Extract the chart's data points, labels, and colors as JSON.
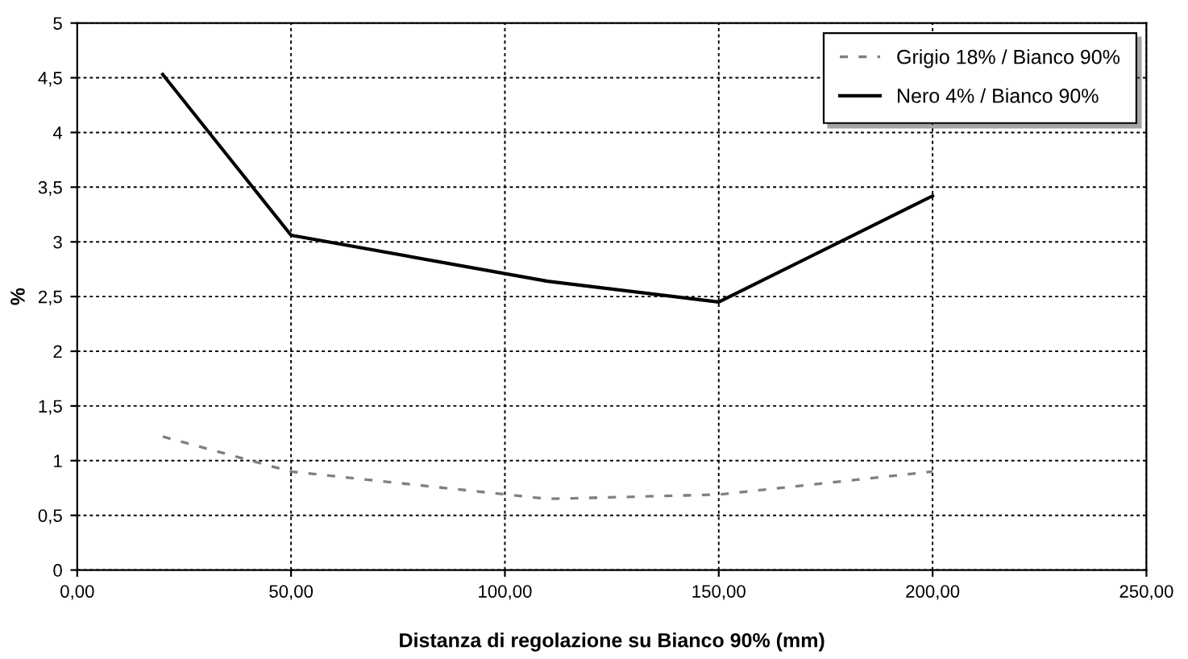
{
  "chart_data": {
    "type": "line",
    "xlabel": "Distanza di regolazione su Bianco 90% (mm)",
    "ylabel": "%",
    "x": [
      20,
      50,
      110,
      150,
      200
    ],
    "series": [
      {
        "name": "Grigio 18% / Bianco 90%",
        "color": "#808080",
        "line_style": "dashed",
        "values": [
          1.22,
          0.9,
          0.65,
          0.69,
          0.9
        ]
      },
      {
        "name": "Nero 4% / Bianco 90%",
        "color": "#000000",
        "line_style": "solid",
        "values": [
          4.53,
          3.06,
          2.64,
          2.45,
          3.42
        ]
      }
    ],
    "xlim": [
      0,
      250
    ],
    "ylim": [
      0,
      5
    ],
    "xticks": [
      {
        "value": 0,
        "label": "0,00"
      },
      {
        "value": 50,
        "label": "50,00"
      },
      {
        "value": 100,
        "label": "100,00"
      },
      {
        "value": 150,
        "label": "150,00"
      },
      {
        "value": 200,
        "label": "200,00"
      },
      {
        "value": 250,
        "label": "250,00"
      }
    ],
    "yticks": [
      0,
      {
        "value": 0.5,
        "label": "0,5"
      },
      1,
      {
        "value": 1.5,
        "label": "1,5"
      },
      2,
      {
        "value": 2.5,
        "label": "2,5"
      },
      3,
      {
        "value": 3.5,
        "label": "3,5"
      },
      4,
      {
        "value": 4.5,
        "label": "4,5"
      },
      5
    ],
    "grid": true,
    "legend": "top right",
    "marker": "none"
  }
}
